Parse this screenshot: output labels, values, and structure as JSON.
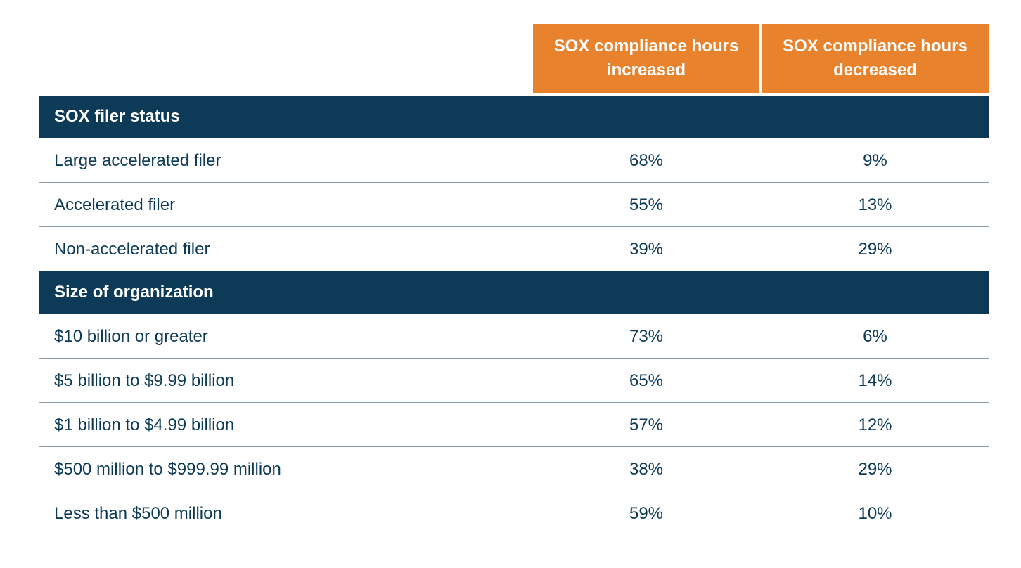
{
  "chart_data": {
    "type": "table",
    "columns": [
      "SOX compliance hours increased",
      "SOX compliance hours decreased"
    ],
    "sections": [
      {
        "title": "SOX filer status",
        "rows": [
          {
            "label": "Large accelerated filer",
            "increased": "68%",
            "decreased": "9%"
          },
          {
            "label": "Accelerated filer",
            "increased": "55%",
            "decreased": "13%"
          },
          {
            "label": "Non-accelerated filer",
            "increased": "39%",
            "decreased": "29%"
          }
        ]
      },
      {
        "title": "Size of organization",
        "rows": [
          {
            "label": "$10 billion or greater",
            "increased": "73%",
            "decreased": "6%"
          },
          {
            "label": "$5 billion to $9.99 billion",
            "increased": "65%",
            "decreased": "14%"
          },
          {
            "label": "$1 billion to $4.99 billion",
            "increased": "57%",
            "decreased": "12%"
          },
          {
            "label": "$500 million to $999.99 million",
            "increased": "38%",
            "decreased": "29%"
          },
          {
            "label": "Less than $500 million",
            "increased": "59%",
            "decreased": "10%"
          }
        ]
      }
    ]
  },
  "colors": {
    "header_orange": "#e8822d",
    "section_navy": "#0d3a56",
    "text_navy": "#0d3a56",
    "rule_gray": "#8a9aa6"
  }
}
